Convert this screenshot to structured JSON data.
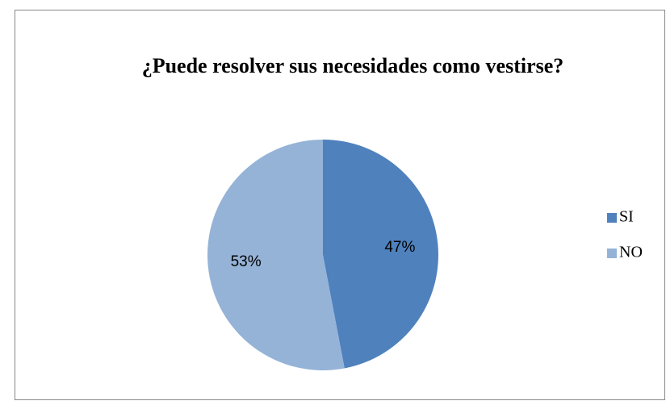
{
  "chart_data": {
    "type": "pie",
    "title": "¿Puede resolver sus necesidades como vestirse?",
    "categories": [
      "SI",
      "NO"
    ],
    "values": [
      47,
      53
    ],
    "value_labels": [
      "47%",
      "53%"
    ],
    "colors": [
      "#4f81bd",
      "#95b3d7"
    ],
    "legend": "right"
  }
}
